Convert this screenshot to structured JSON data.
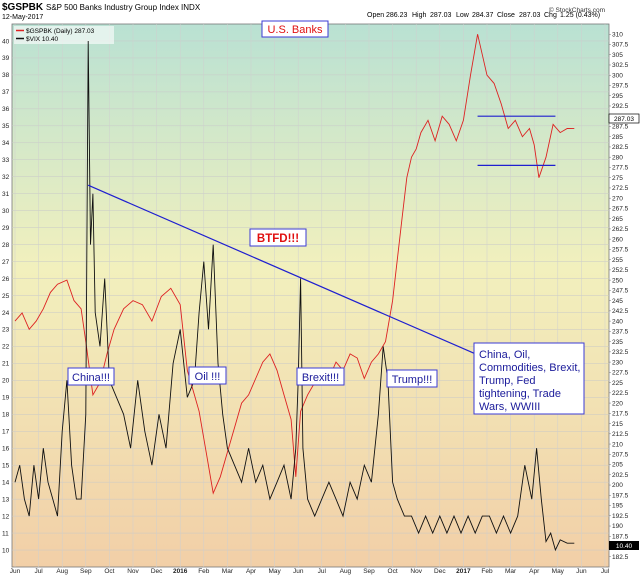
{
  "header": {
    "ticker": "$GSPBK",
    "title": "S&P 500 Banks Industry Group Index  INDX",
    "date": "12-May-2017",
    "open_label": "Open",
    "open": "286.23",
    "high_label": "High",
    "high": "287.03",
    "low_label": "Low",
    "low": "284.37",
    "close_label": "Close",
    "close": "287.03",
    "chg_label": "Chg",
    "chg": "1.25 (0.43%)",
    "legend1": "$GSPBK (Daily) 287.03",
    "legend2": "$VIX 10.40",
    "watermark": "© StockCharts.com"
  },
  "annotations": {
    "title": "U.S. Banks",
    "btfd": "BTFD!!!",
    "china": "China!!!",
    "oil": "Oil !!!",
    "brexit": "Brexit!!!",
    "trump": "Trump!!!",
    "box_lines": [
      "China, Oil,",
      "Commodities, Brexit,",
      "Trump, Fed",
      "tightening, Trade",
      "Wars, WWIII"
    ]
  },
  "badges": {
    "right_value": "287.03",
    "left_value": "10.40"
  },
  "colors": {
    "gspbk": "#dd2222",
    "vix": "#111111",
    "trendline": "#1f1fd0",
    "title_red": "#e01010",
    "annotation_blue": "#1a1a9a"
  },
  "chart_data": {
    "type": "line",
    "x_ticks": [
      "Jun",
      "Jul",
      "Aug",
      "Sep",
      "Oct",
      "Nov",
      "Dec",
      "2016",
      "Feb",
      "Mar",
      "Apr",
      "May",
      "Jun",
      "Jul",
      "Aug",
      "Sep",
      "Oct",
      "Nov",
      "Dec",
      "2017",
      "Feb",
      "Mar",
      "Apr",
      "May",
      "Jun",
      "Jul"
    ],
    "left_axis": {
      "label": "$VIX",
      "ylim": [
        9,
        41
      ],
      "ticks": [
        10,
        11,
        12,
        13,
        14,
        15,
        16,
        17,
        18,
        19,
        20,
        21,
        22,
        23,
        24,
        25,
        26,
        27,
        28,
        29,
        30,
        31,
        32,
        33,
        34,
        35,
        36,
        37,
        38,
        39,
        40
      ]
    },
    "right_axis": {
      "label": "$GSPBK",
      "ylim": [
        180,
        312.5
      ],
      "ticks": [
        182.5,
        185,
        187.5,
        190,
        192.5,
        195,
        197.5,
        200,
        202.5,
        205,
        207.5,
        210,
        212.5,
        215,
        217.5,
        220,
        222.5,
        225,
        227.5,
        230,
        232.5,
        235,
        237.5,
        240,
        242.5,
        245,
        247.5,
        250,
        252.5,
        255,
        257.5,
        260,
        262.5,
        265,
        267.5,
        270,
        272.5,
        275,
        277.5,
        280,
        282.5,
        285,
        287.5,
        290,
        292.5,
        295,
        297.5,
        300,
        302.5,
        305,
        307.5,
        310
      ]
    },
    "series": [
      {
        "name": "$GSPBK (Daily) 287.03",
        "axis": "right",
        "x": [
          0,
          0.3,
          0.6,
          0.9,
          1.2,
          1.5,
          1.8,
          2.2,
          2.5,
          2.8,
          3.0,
          3.3,
          3.6,
          3.9,
          4.2,
          4.6,
          5.0,
          5.4,
          5.8,
          6.2,
          6.6,
          7.0,
          7.3,
          7.6,
          7.8,
          8.1,
          8.4,
          8.7,
          9.0,
          9.3,
          9.6,
          9.9,
          10.2,
          10.5,
          10.8,
          11.1,
          11.4,
          11.7,
          11.9,
          12.1,
          12.4,
          12.7,
          13.0,
          13.3,
          13.6,
          13.9,
          14.2,
          14.5,
          14.8,
          15.1,
          15.4,
          15.7,
          16.0,
          16.2,
          16.4,
          16.6,
          16.8,
          17.0,
          17.2,
          17.5,
          17.8,
          18.1,
          18.4,
          18.7,
          19.0,
          19.3,
          19.6,
          19.8,
          20.0,
          20.3,
          20.6,
          20.9,
          21.2,
          21.5,
          21.8,
          22.0,
          22.2,
          22.5,
          22.8,
          23.1,
          23.4,
          23.7
        ],
        "values": [
          240,
          242,
          238,
          240,
          243,
          247,
          249,
          250,
          245,
          243,
          235,
          222,
          225,
          232,
          238,
          243,
          245,
          244,
          240,
          246,
          248,
          244,
          228,
          222,
          218,
          208,
          198,
          202,
          208,
          214,
          220,
          222,
          226,
          230,
          232,
          228,
          222,
          216,
          202,
          218,
          222,
          225,
          228,
          226,
          230,
          228,
          232,
          231,
          226,
          230,
          232,
          235,
          245,
          255,
          265,
          275,
          280,
          282,
          286,
          289,
          284,
          290,
          288,
          284,
          289,
          300,
          310,
          305,
          300,
          298,
          293,
          287,
          289,
          285,
          287,
          283,
          275,
          280,
          288,
          286,
          287,
          287.03
        ]
      },
      {
        "name": "$VIX 10.40",
        "axis": "left",
        "x": [
          0,
          0.2,
          0.4,
          0.6,
          0.8,
          1.0,
          1.2,
          1.4,
          1.6,
          1.8,
          2.0,
          2.2,
          2.4,
          2.6,
          2.8,
          3.0,
          3.1,
          3.2,
          3.3,
          3.4,
          3.6,
          3.8,
          4.0,
          4.3,
          4.6,
          4.9,
          5.2,
          5.5,
          5.8,
          6.1,
          6.4,
          6.7,
          7.0,
          7.3,
          7.6,
          7.8,
          8.0,
          8.2,
          8.4,
          8.6,
          8.8,
          9.0,
          9.3,
          9.6,
          9.9,
          10.2,
          10.5,
          10.8,
          11.1,
          11.4,
          11.7,
          11.9,
          12.0,
          12.1,
          12.2,
          12.4,
          12.7,
          13.0,
          13.3,
          13.6,
          13.9,
          14.2,
          14.5,
          14.8,
          15.1,
          15.4,
          15.6,
          15.8,
          16.0,
          16.2,
          16.5,
          16.8,
          17.1,
          17.4,
          17.7,
          18.0,
          18.3,
          18.6,
          18.9,
          19.2,
          19.5,
          19.8,
          20.1,
          20.4,
          20.7,
          21.0,
          21.3,
          21.6,
          21.9,
          22.1,
          22.3,
          22.5,
          22.7,
          22.9,
          23.1,
          23.4,
          23.7
        ],
        "values": [
          14,
          15,
          13,
          12,
          15,
          13,
          16,
          14,
          13,
          12,
          17,
          20,
          15,
          13,
          13,
          18,
          40,
          28,
          31,
          24,
          22,
          26,
          20,
          19,
          18,
          16,
          20,
          17,
          15,
          18,
          16,
          21,
          23,
          19,
          20,
          24,
          27,
          23,
          28,
          21,
          18,
          16,
          15,
          14,
          16,
          14,
          15,
          13,
          14,
          15,
          13,
          16,
          20,
          26,
          16,
          13,
          12,
          13,
          14,
          13,
          12,
          14,
          13,
          15,
          14,
          18,
          22,
          20,
          14,
          13,
          12,
          12,
          11,
          12,
          11,
          12,
          11,
          12,
          11,
          12,
          11,
          12,
          12,
          11,
          12,
          11,
          12,
          15,
          13,
          16,
          13,
          10.5,
          11,
          10,
          10.6,
          10.4,
          10.4
        ]
      }
    ],
    "trendlines": [
      {
        "name": "downtrend",
        "axis": "left",
        "from": [
          3.1,
          31.5
        ],
        "to": [
          20.6,
          20.9
        ]
      },
      {
        "name": "resistance",
        "axis": "right",
        "from": [
          19.6,
          290
        ],
        "to": [
          22.9,
          290
        ]
      },
      {
        "name": "support",
        "axis": "right",
        "from": [
          19.6,
          278
        ],
        "to": [
          22.9,
          278
        ]
      }
    ]
  }
}
